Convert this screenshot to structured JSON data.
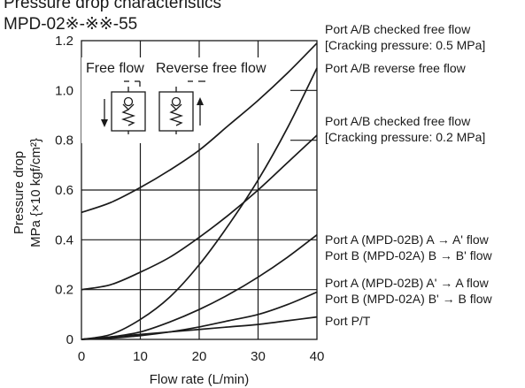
{
  "header": {
    "title": "Pressure drop characteristics",
    "model": "MPD-02※-※※-55"
  },
  "colors": {
    "ink": "#1a1a1a",
    "grid": "#1a1a1a",
    "background": "#ffffff"
  },
  "chart_data": {
    "type": "line",
    "xlabel": "Flow rate (L/min)",
    "ylabel_line1": "Pressure drop",
    "ylabel_line2": "MPa {×10 kgf/cm²}",
    "xlim": [
      0,
      40
    ],
    "ylim": [
      0,
      1.2
    ],
    "xticks": [
      0,
      10,
      20,
      30,
      40
    ],
    "yticks": [
      0,
      0.2,
      0.4,
      0.6,
      0.8,
      1.0,
      1.2
    ],
    "ytick_labels": [
      "0",
      "0.2",
      "0.4",
      "0.6",
      "0.8",
      "1.0",
      "1.2"
    ],
    "grid": true,
    "inset": {
      "free_flow_label": "Free flow",
      "reverse_flow_label": "Reverse free flow"
    },
    "series": [
      {
        "name": "Port A/B checked free flow [Cracking pressure: 0.5 MPa]",
        "label_lines": [
          "Port A/B checked free flow",
          "[Cracking pressure: 0.5 MPa]"
        ],
        "x": [
          0,
          5,
          10,
          15,
          20,
          25,
          30,
          35,
          40
        ],
        "y": [
          0.51,
          0.55,
          0.61,
          0.68,
          0.76,
          0.86,
          0.96,
          1.07,
          1.19
        ]
      },
      {
        "name": "Port A/B reverse free flow",
        "label_lines": [
          "Port A/B reverse free flow"
        ],
        "x": [
          0,
          5,
          10,
          15,
          20,
          25,
          30,
          35,
          40
        ],
        "y": [
          0.0,
          0.02,
          0.08,
          0.17,
          0.3,
          0.46,
          0.64,
          0.85,
          1.09
        ]
      },
      {
        "name": "Port A/B checked free flow [Cracking pressure: 0.2 MPa]",
        "label_lines": [
          "Port A/B checked free flow",
          "[Cracking pressure: 0.2 MPa]"
        ],
        "x": [
          0,
          5,
          10,
          15,
          20,
          25,
          30,
          35,
          40
        ],
        "y": [
          0.2,
          0.22,
          0.27,
          0.33,
          0.41,
          0.5,
          0.6,
          0.71,
          0.82
        ]
      },
      {
        "name": "Port A (MPD-02B) A → A' flow / Port B (MPD-02A) B → B' flow",
        "label_lines": [
          "Port A (MPD-02B) A → A' flow",
          "Port B (MPD-02A) B → B' flow"
        ],
        "x": [
          0,
          5,
          10,
          15,
          20,
          25,
          30,
          35,
          40
        ],
        "y": [
          0.0,
          0.01,
          0.03,
          0.07,
          0.12,
          0.18,
          0.25,
          0.33,
          0.42
        ]
      },
      {
        "name": "Port A (MPD-02B) A' → A flow / Port B (MPD-02A) B' → B flow",
        "label_lines": [
          "Port A (MPD-02B) A' → A flow",
          "Port B (MPD-02A) B' → B flow"
        ],
        "x": [
          0,
          5,
          10,
          15,
          20,
          25,
          30,
          35,
          40
        ],
        "y": [
          0.0,
          0.005,
          0.015,
          0.03,
          0.05,
          0.075,
          0.1,
          0.14,
          0.19
        ]
      },
      {
        "name": "Port P/T",
        "label_lines": [
          "Port P/T"
        ],
        "x": [
          0,
          5,
          10,
          15,
          20,
          25,
          30,
          35,
          40
        ],
        "y": [
          0.0,
          0.01,
          0.02,
          0.03,
          0.04,
          0.05,
          0.06,
          0.075,
          0.09
        ]
      }
    ]
  }
}
